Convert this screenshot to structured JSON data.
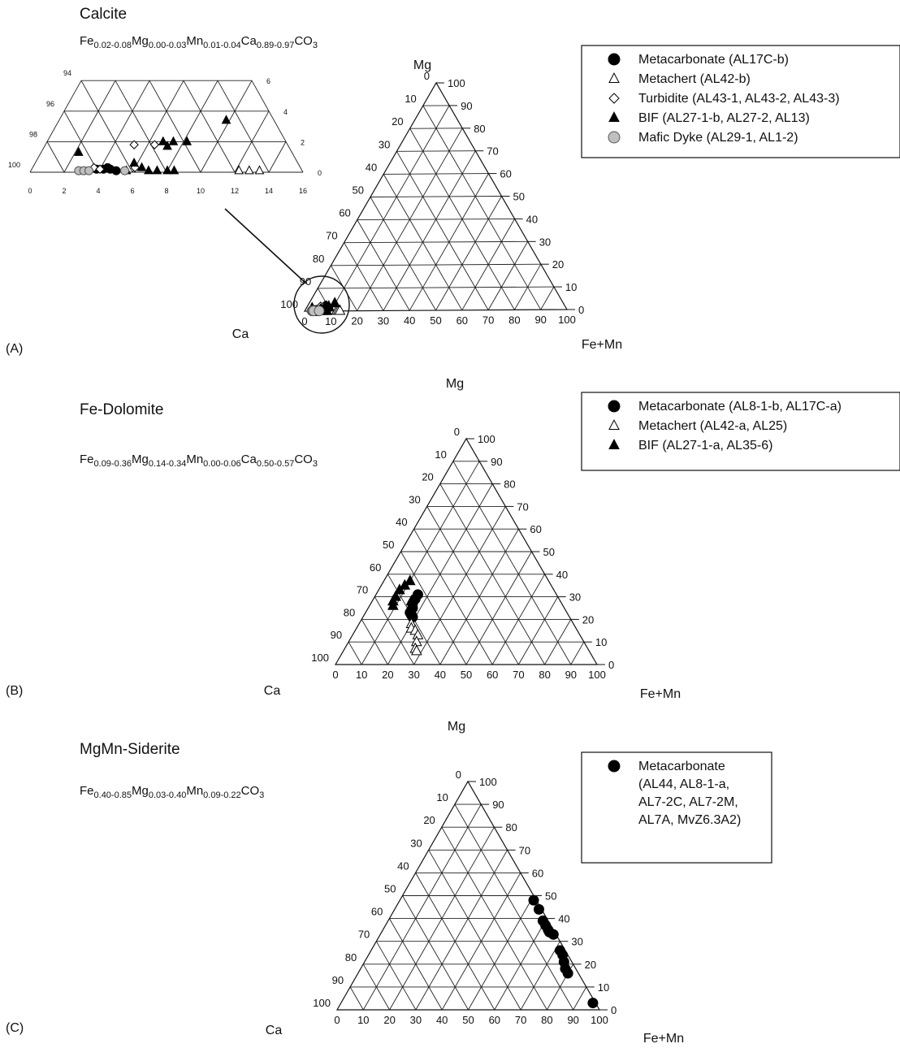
{
  "chart_data": [
    {
      "type": "ternary",
      "panel_label": "(A)",
      "title": "Calcite",
      "formula": [
        {
          "t": "Fe"
        },
        {
          "t": "0.02-0.08",
          "sub": true
        },
        {
          "t": "Mg"
        },
        {
          "t": "0.00-0.03",
          "sub": true
        },
        {
          "t": "Mn"
        },
        {
          "t": "0.01-0.04",
          "sub": true
        },
        {
          "t": "Ca"
        },
        {
          "t": "0.89-0.97",
          "sub": true
        },
        {
          "t": "CO"
        },
        {
          "t": "3",
          "sub": true
        }
      ],
      "vertices": {
        "top": "Mg",
        "left": "Ca",
        "right": "Fe+Mn"
      },
      "tick_labels": [
        "0",
        "10",
        "20",
        "30",
        "40",
        "50",
        "60",
        "70",
        "80",
        "90",
        "100"
      ],
      "series": [
        {
          "name": "Metacarbonate (AL17C-b)",
          "marker": "circle",
          "fill": "#000000",
          "points": [
            {
              "fe": 3.8,
              "mg": 0.2
            },
            {
              "fe": 4.2,
              "mg": 0.2
            },
            {
              "fe": 4.6,
              "mg": 0.2
            },
            {
              "fe": 5.0,
              "mg": 0.1
            },
            {
              "fe": 4.4,
              "mg": 0.3
            }
          ]
        },
        {
          "name": "Metachert (AL42-b)",
          "marker": "triangle",
          "fill": "#ffffff",
          "points": [
            {
              "fe": 12.2,
              "mg": 0.1
            },
            {
              "fe": 12.8,
              "mg": 0.1
            },
            {
              "fe": 13.4,
              "mg": 0.1
            }
          ]
        },
        {
          "name": "Turbidite (AL43-1, AL43-2, AL43-3)",
          "marker": "diamond",
          "fill": "#ffffff",
          "points": [
            {
              "fe": 3.6,
              "mg": 0.3
            },
            {
              "fe": 4.0,
              "mg": 0.2
            },
            {
              "fe": 5.2,
              "mg": 1.8
            },
            {
              "fe": 6.4,
              "mg": 1.8
            },
            {
              "fe": 6.0,
              "mg": 0.3
            }
          ]
        },
        {
          "name": "BIF (AL27-1-b, AL27-2, AL13)",
          "marker": "triangle",
          "fill": "#000000",
          "points": [
            {
              "fe": 2.2,
              "mg": 1.3
            },
            {
              "fe": 6.8,
              "mg": 2.0
            },
            {
              "fe": 7.4,
              "mg": 2.0
            },
            {
              "fe": 7.2,
              "mg": 1.7
            },
            {
              "fe": 8.2,
              "mg": 2.0
            },
            {
              "fe": 9.8,
              "mg": 3.4
            },
            {
              "fe": 5.8,
              "mg": 0.6
            },
            {
              "fe": 6.4,
              "mg": 0.3
            },
            {
              "fe": 6.9,
              "mg": 0.1
            },
            {
              "fe": 7.4,
              "mg": 0.1
            },
            {
              "fe": 8.0,
              "mg": 0.1
            },
            {
              "fe": 8.4,
              "mg": 0.1
            },
            {
              "fe": 5.6,
              "mg": 0.1
            }
          ]
        },
        {
          "name": "Mafic Dyke (AL29-1, AL1-2)",
          "marker": "circle",
          "fill": "#bfbfbf",
          "points": [
            {
              "fe": 2.8,
              "mg": 0.1
            },
            {
              "fe": 3.1,
              "mg": 0.1
            },
            {
              "fe": 3.4,
              "mg": 0.1
            },
            {
              "fe": 5.5,
              "mg": 0.1
            }
          ]
        }
      ],
      "inset": {
        "fe_ticks": [
          "0",
          "2",
          "4",
          "6",
          "8",
          "10",
          "12",
          "14",
          "16"
        ],
        "mg_ticks": [
          "0",
          "2",
          "4",
          "6"
        ],
        "ca_ticks": [
          "100",
          "98",
          "96",
          "94"
        ]
      }
    },
    {
      "type": "ternary",
      "panel_label": "(B)",
      "title": "Fe-Dolomite",
      "formula": [
        {
          "t": "Fe"
        },
        {
          "t": "0.09-0.36",
          "sub": true
        },
        {
          "t": "Mg"
        },
        {
          "t": "0.14-0.34",
          "sub": true
        },
        {
          "t": "Mn"
        },
        {
          "t": "0.00-0.06",
          "sub": true
        },
        {
          "t": "Ca"
        },
        {
          "t": "0.50-0.57",
          "sub": true
        },
        {
          "t": "CO"
        },
        {
          "t": "3",
          "sub": true
        }
      ],
      "vertices": {
        "top": "Mg",
        "left": "Ca",
        "right": "Fe+Mn"
      },
      "tick_labels": [
        "0",
        "10",
        "20",
        "30",
        "40",
        "50",
        "60",
        "70",
        "80",
        "90",
        "100"
      ],
      "series": [
        {
          "name": "Metacarbonate (AL8-1-b, AL17C-a)",
          "marker": "circle",
          "fill": "#000000",
          "points": [
            {
              "fe": 16,
              "mg": 31
            },
            {
              "fe": 16,
              "mg": 29
            },
            {
              "fe": 16,
              "mg": 27
            },
            {
              "fe": 17,
              "mg": 25
            },
            {
              "fe": 17,
              "mg": 23
            },
            {
              "fe": 18,
              "mg": 22
            },
            {
              "fe": 19,
              "mg": 21
            }
          ]
        },
        {
          "name": "Metachert (AL42-a, AL25)",
          "marker": "triangle",
          "fill": "#ffffff",
          "points": [
            {
              "fe": 20,
              "mg": 18
            },
            {
              "fe": 21,
              "mg": 16
            },
            {
              "fe": 23,
              "mg": 15
            },
            {
              "fe": 25,
              "mg": 13
            },
            {
              "fe": 26,
              "mg": 10
            },
            {
              "fe": 27,
              "mg": 7
            },
            {
              "fe": 28,
              "mg": 6
            }
          ]
        },
        {
          "name": "BIF (AL27-1-a, AL35-6)",
          "marker": "triangle",
          "fill": "#000000",
          "points": [
            {
              "fe": 10,
              "mg": 37
            },
            {
              "fe": 9,
              "mg": 35
            },
            {
              "fe": 8,
              "mg": 33
            },
            {
              "fe": 8,
              "mg": 30
            },
            {
              "fe": 8,
              "mg": 28
            },
            {
              "fe": 9,
              "mg": 26
            },
            {
              "fe": 15,
              "mg": 28
            },
            {
              "fe": 16,
              "mg": 26
            },
            {
              "fe": 17,
              "mg": 24
            }
          ]
        }
      ]
    },
    {
      "type": "ternary",
      "panel_label": "(C)",
      "title": "MgMn-Siderite",
      "formula": [
        {
          "t": "Fe"
        },
        {
          "t": "0.40-0.85",
          "sub": true
        },
        {
          "t": "Mg"
        },
        {
          "t": "0.03-0.40",
          "sub": true
        },
        {
          "t": "Mn"
        },
        {
          "t": "0.09-0.22",
          "sub": true
        },
        {
          "t": "CO"
        },
        {
          "t": "3",
          "sub": true
        }
      ],
      "vertices": {
        "top": "Mg",
        "left": "Ca",
        "right": "Fe+Mn"
      },
      "tick_labels": [
        "0",
        "10",
        "20",
        "30",
        "40",
        "50",
        "60",
        "70",
        "80",
        "90",
        "100"
      ],
      "series": [
        {
          "name": "Metacarbonate\n(AL44, AL8-1-a,\nAL7-2C, AL7-2M,\nAL7A, MvZ6.3A2)",
          "marker": "circle",
          "fill": "#000000",
          "points": [
            {
              "fe": 51,
              "mg": 48
            },
            {
              "fe": 55,
              "mg": 44
            },
            {
              "fe": 59,
              "mg": 39
            },
            {
              "fe": 61,
              "mg": 37
            },
            {
              "fe": 63,
              "mg": 35
            },
            {
              "fe": 64,
              "mg": 34
            },
            {
              "fe": 66,
              "mg": 33
            },
            {
              "fe": 72,
              "mg": 26
            },
            {
              "fe": 74,
              "mg": 24
            },
            {
              "fe": 76,
              "mg": 21
            },
            {
              "fe": 78,
              "mg": 18
            },
            {
              "fe": 80,
              "mg": 16
            },
            {
              "fe": 96,
              "mg": 3
            }
          ]
        }
      ]
    }
  ]
}
